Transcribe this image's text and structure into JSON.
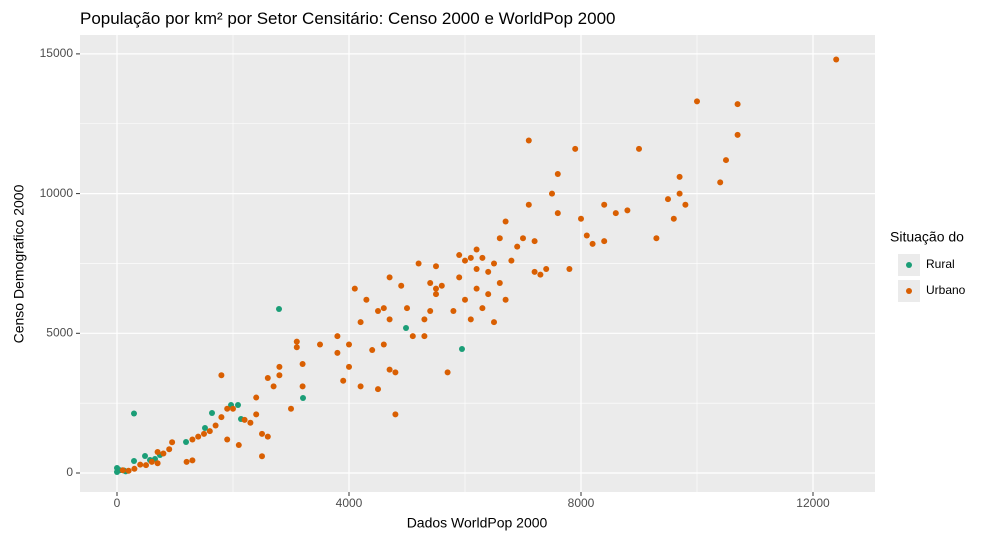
{
  "chart_data": {
    "type": "scatter",
    "title": "População por km² por Setor Censitário: Censo 2000 e WorldPop 2000",
    "x_label": "Dados WorldPop 2000",
    "y_label": "Censo Demografico 2000",
    "legend_title": "Situação do",
    "xlim": [
      -638,
      13069
    ],
    "ylim": [
      -680,
      15676
    ],
    "xticks": [
      0,
      4000,
      8000,
      12000
    ],
    "yticks": [
      0,
      5000,
      10000,
      15000
    ],
    "grid": true,
    "legend_position": "right",
    "series": [
      {
        "name": "Rural",
        "color": "#1b9e77",
        "x": [
          0,
          0,
          50,
          120,
          150,
          293,
          293,
          483,
          569,
          655,
          741,
          1190,
          1517,
          1638,
          1966,
          2086,
          2138,
          2793,
          3207,
          4983,
          5948
        ],
        "values": [
          179,
          36,
          100,
          90,
          60,
          2130,
          430,
          608,
          465,
          500,
          644,
          1110,
          1610,
          2147,
          2434,
          2434,
          1933,
          5870,
          2684,
          5190,
          4438
        ]
      },
      {
        "name": "Urbano",
        "color": "#d95f02",
        "x": [
          100,
          200,
          300,
          400,
          500,
          600,
          700,
          700,
          800,
          900,
          950,
          1200,
          1300,
          1300,
          1400,
          1500,
          1600,
          1700,
          1800,
          1800,
          1900,
          1900,
          2000,
          2100,
          2200,
          2300,
          2400,
          2400,
          2500,
          2500,
          2600,
          2600,
          2700,
          2800,
          2800,
          3000,
          3100,
          3100,
          3200,
          3200,
          3500,
          3800,
          3800,
          3900,
          4000,
          4000,
          4100,
          4200,
          4200,
          4300,
          4400,
          4500,
          4500,
          4600,
          4600,
          4700,
          4700,
          4700,
          4800,
          4800,
          4900,
          5000,
          5100,
          5200,
          5300,
          5300,
          5400,
          5400,
          5500,
          5500,
          5500,
          5600,
          5700,
          5800,
          5900,
          5900,
          6000,
          6000,
          6100,
          6100,
          6200,
          6200,
          6200,
          6300,
          6300,
          6400,
          6400,
          6500,
          6500,
          6600,
          6600,
          6700,
          6700,
          6800,
          6900,
          7000,
          7100,
          7100,
          7200,
          7200,
          7300,
          7400,
          7500,
          7600,
          7600,
          7800,
          7900,
          8000,
          8100,
          8200,
          8400,
          8400,
          8600,
          8800,
          9000,
          9300,
          9500,
          9600,
          9700,
          9700,
          9800,
          10000,
          10400,
          10500,
          10700,
          10700,
          12400
        ],
        "values": [
          100,
          80,
          150,
          300,
          280,
          400,
          350,
          750,
          700,
          850,
          1100,
          400,
          450,
          1200,
          1300,
          1400,
          1500,
          1700,
          2000,
          3500,
          2300,
          1200,
          2300,
          1000,
          1900,
          1800,
          2700,
          2100,
          1400,
          600,
          1300,
          3400,
          3100,
          3500,
          3800,
          2300,
          4500,
          4700,
          3100,
          3900,
          4600,
          4900,
          4300,
          3300,
          4600,
          3800,
          6600,
          5400,
          3100,
          6200,
          4400,
          3000,
          5800,
          5900,
          4600,
          5500,
          7000,
          3700,
          3600,
          2100,
          6700,
          5900,
          4900,
          7500,
          5500,
          4900,
          5800,
          6800,
          7400,
          6400,
          6600,
          6700,
          3600,
          5800,
          7000,
          7800,
          6200,
          7600,
          7700,
          5500,
          7300,
          8000,
          6600,
          7700,
          5900,
          7200,
          6400,
          7500,
          5400,
          8400,
          6800,
          9000,
          6200,
          7600,
          8100,
          8400,
          11900,
          9600,
          8300,
          7200,
          7100,
          7300,
          10000,
          9300,
          10700,
          7300,
          11600,
          9100,
          8500,
          8200,
          8300,
          9600,
          9300,
          9400,
          11600,
          8400,
          9800,
          9100,
          10600,
          10000,
          9600,
          13300,
          10400,
          11200,
          12100,
          13200,
          14800
        ]
      }
    ]
  }
}
